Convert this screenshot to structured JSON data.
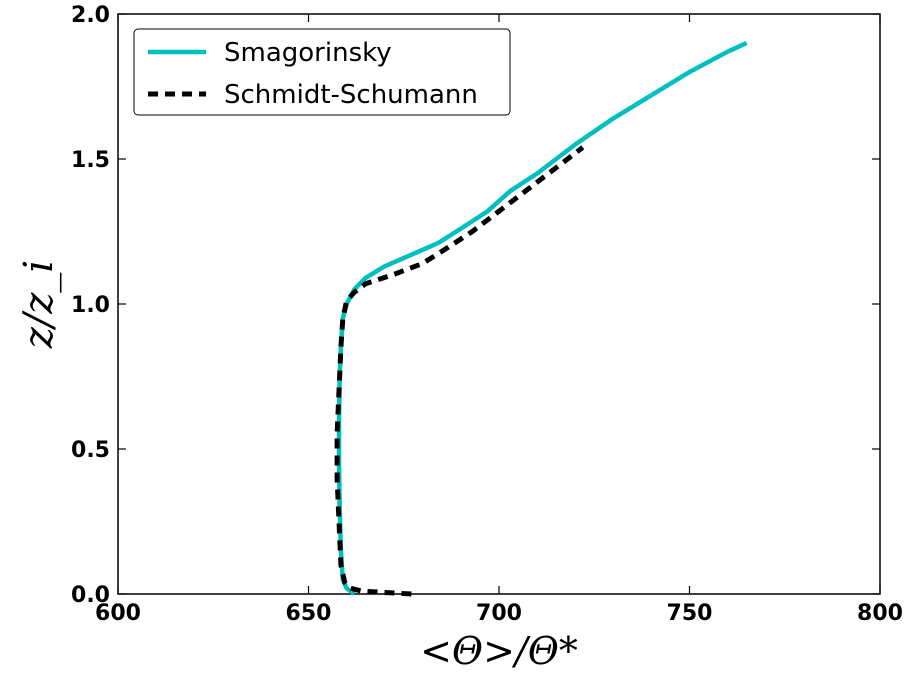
{
  "chart_data": {
    "type": "line",
    "title": "",
    "xlabel": "<Θ>/Θ*",
    "ylabel": "z/z_i",
    "xlim": [
      600,
      800
    ],
    "ylim": [
      0,
      2
    ],
    "xticks": [
      600,
      650,
      700,
      750,
      800
    ],
    "yticks": [
      0.0,
      0.5,
      1.0,
      1.5,
      2.0
    ],
    "xtick_labels": [
      "600",
      "650",
      "700",
      "750",
      "800"
    ],
    "ytick_labels": [
      "0.0",
      "0.5",
      "1.0",
      "1.5",
      "2.0"
    ],
    "grid": false,
    "legend": "top-left",
    "series": [
      {
        "name": "Smagorinsky",
        "color": "#00bfbf",
        "style": "solid",
        "x": [
          662,
          660,
          659,
          658.5,
          658.2,
          658,
          658,
          658.2,
          658.5,
          659,
          660,
          662,
          665,
          670,
          677,
          684,
          690,
          697,
          703,
          710,
          720,
          730,
          740,
          750,
          760,
          765
        ],
        "y": [
          0.0,
          0.02,
          0.05,
          0.15,
          0.3,
          0.45,
          0.6,
          0.75,
          0.85,
          0.95,
          1.0,
          1.05,
          1.09,
          1.13,
          1.17,
          1.21,
          1.26,
          1.32,
          1.39,
          1.45,
          1.55,
          1.64,
          1.72,
          1.8,
          1.87,
          1.9
        ]
      },
      {
        "name": "Schmidt-Schumann",
        "color": "#000000",
        "style": "dashed",
        "x": [
          677,
          670,
          664,
          661,
          659.5,
          658.5,
          658,
          657.5,
          657.5,
          658,
          658.5,
          659,
          660,
          662,
          665,
          672,
          680,
          686,
          693,
          700,
          707,
          714,
          719,
          722
        ],
        "y": [
          0.0,
          0.005,
          0.01,
          0.02,
          0.04,
          0.1,
          0.25,
          0.4,
          0.55,
          0.7,
          0.85,
          0.95,
          1.01,
          1.04,
          1.07,
          1.1,
          1.14,
          1.19,
          1.25,
          1.32,
          1.39,
          1.46,
          1.51,
          1.54
        ]
      }
    ]
  }
}
